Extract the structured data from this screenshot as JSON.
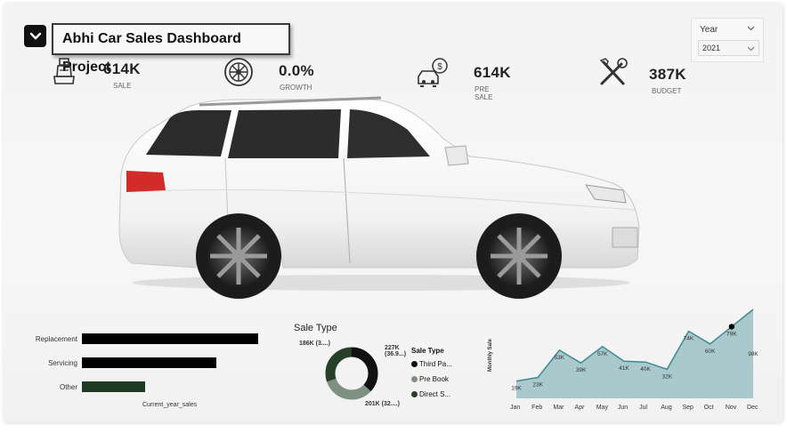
{
  "header": {
    "title": "Abhi Car Sales Dashboard Project",
    "collapse_icon": "chevron-down-icon"
  },
  "kpis": [
    {
      "icon": "car-seat-icon",
      "value": "614K",
      "label": "SALE"
    },
    {
      "icon": "wheel-icon",
      "value": "0.0%",
      "label": "GROWTH"
    },
    {
      "icon": "car-dollar-icon",
      "value": "614K",
      "label": "PRE SALE"
    },
    {
      "icon": "tools-icon",
      "value": "387K",
      "label": "BUDGET"
    }
  ],
  "slicer": {
    "label": "Year",
    "selected": "2021"
  },
  "colors": {
    "bar_black": "#000000",
    "bar_green": "#1f3a22",
    "donut_dark": "#111111",
    "donut_mid": "#7e907f",
    "donut_dark_green": "#263f28",
    "area_fill": "#a9c9cd",
    "area_line": "#3e8a93"
  },
  "chart_data": [
    {
      "type": "bar",
      "orientation": "horizontal",
      "categories": [
        "Replacement",
        "Servicing",
        "Other"
      ],
      "values": [
        264,
        201,
        95
      ],
      "xlabel": "Current_year_sales",
      "ylabel": ""
    },
    {
      "type": "pie",
      "title": "Sale Type",
      "legend_title": "Sale Type",
      "legend": [
        "Third Pa...",
        "Pre Book",
        "Direct S..."
      ],
      "data_labels": [
        "227K (36.9...)",
        "201K (32....)",
        "186K (3....)"
      ],
      "values": [
        227,
        201,
        186
      ]
    },
    {
      "type": "area",
      "ylabel": "Monthly Sale",
      "categories": [
        "Jan",
        "Feb",
        "Mar",
        "Apr",
        "May",
        "Jun",
        "Jul",
        "Aug",
        "Sep",
        "Oct",
        "Nov",
        "Dec"
      ],
      "values": [
        19,
        23,
        53,
        39,
        57,
        41,
        40,
        32,
        74,
        60,
        79,
        98
      ],
      "labels": [
        "19K",
        "23K",
        "53K",
        "39K",
        "57K",
        "41K",
        "40K",
        "32K",
        "74K",
        "60K",
        "79K",
        "98K"
      ],
      "ylim": [
        0,
        98
      ],
      "highlight_index": 10
    }
  ]
}
